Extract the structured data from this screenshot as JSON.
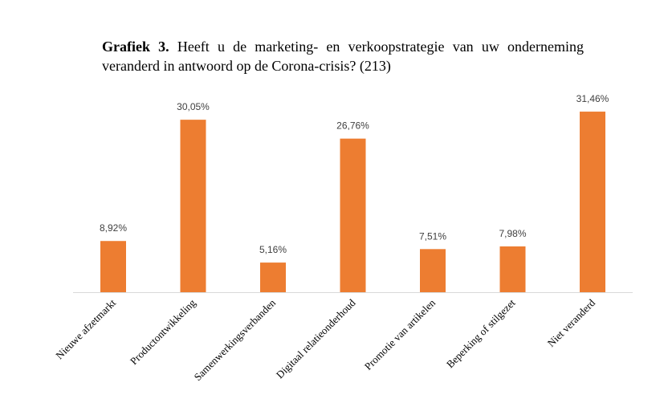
{
  "chart_data": {
    "type": "bar",
    "title_label": "Grafiek 3.",
    "title": "Heeft u de marketing- en verkoopstrategie van uw onderneming veranderd in antwoord op de Corona-crisis? (213)",
    "categories": [
      "Nieuwe afzetmarkt",
      "Productontwikkeling",
      "Samenwerkingsverbanden",
      "Digitaal relatieonderhoud",
      "Promotie van artikelen",
      "Beperking of stilgezet",
      "Niet veranderd"
    ],
    "values": [
      8.92,
      30.05,
      5.16,
      26.76,
      7.51,
      7.98,
      31.46
    ],
    "value_labels": [
      "8,92%",
      "30,05%",
      "5,16%",
      "26,76%",
      "7,51%",
      "7,98%",
      "31,46%"
    ],
    "color": "#ed7d31"
  }
}
